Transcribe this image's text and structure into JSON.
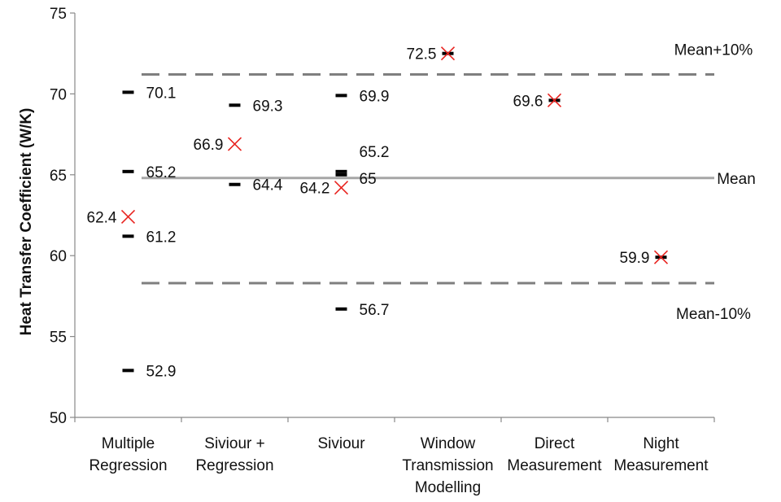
{
  "chart_data": {
    "type": "scatter",
    "ylabel": "Heat Transfer Coefficient (W/K)",
    "ylim": [
      50,
      75
    ],
    "yticks": [
      50,
      55,
      60,
      65,
      70,
      75
    ],
    "categories": [
      [
        "Multiple",
        "Regression"
      ],
      [
        "Siviour +",
        "Regression"
      ],
      [
        "Siviour"
      ],
      [
        "Window",
        "Transmission",
        "Modelling"
      ],
      [
        "Direct",
        "Measurement"
      ],
      [
        "Night",
        "Measurement"
      ]
    ],
    "series": [
      {
        "marker": "dash",
        "color": "#000000",
        "points": [
          {
            "cat": 0,
            "y": 70.1,
            "label": "70.1"
          },
          {
            "cat": 0,
            "y": 65.2,
            "label": "65.2"
          },
          {
            "cat": 0,
            "y": 61.2,
            "label": "61.2"
          },
          {
            "cat": 0,
            "y": 52.9,
            "label": "52.9"
          },
          {
            "cat": 1,
            "y": 69.3,
            "label": "69.3"
          },
          {
            "cat": 1,
            "y": 64.4,
            "label": "64.4"
          },
          {
            "cat": 2,
            "y": 69.9,
            "label": "69.9"
          },
          {
            "cat": 2,
            "y": 65.2,
            "label": "65.2"
          },
          {
            "cat": 2,
            "y": 65.0,
            "label": "65"
          },
          {
            "cat": 2,
            "y": 56.7,
            "label": "56.7"
          },
          {
            "cat": 3,
            "y": 72.5,
            "label": ""
          },
          {
            "cat": 4,
            "y": 69.6,
            "label": ""
          },
          {
            "cat": 5,
            "y": 59.9,
            "label": ""
          }
        ]
      },
      {
        "marker": "x",
        "color": "#e8231f",
        "points": [
          {
            "cat": 0,
            "y": 62.4,
            "label": "62.4"
          },
          {
            "cat": 1,
            "y": 66.9,
            "label": "66.9"
          },
          {
            "cat": 2,
            "y": 64.2,
            "label": "64.2"
          },
          {
            "cat": 3,
            "y": 72.5,
            "label": "72.5"
          },
          {
            "cat": 4,
            "y": 69.6,
            "label": "69.6"
          },
          {
            "cat": 5,
            "y": 59.9,
            "label": "59.9"
          }
        ]
      }
    ],
    "reference_lines": [
      {
        "y": 71.2,
        "label": "Mean+10%",
        "style": "dashed",
        "color": "#7f7f7f"
      },
      {
        "y": 64.8,
        "label": "Mean",
        "style": "solid",
        "color": "#a6a6a6"
      },
      {
        "y": 58.3,
        "label": "Mean-10%",
        "style": "dashed",
        "color": "#7f7f7f"
      }
    ],
    "grid": false,
    "legend": "none"
  }
}
